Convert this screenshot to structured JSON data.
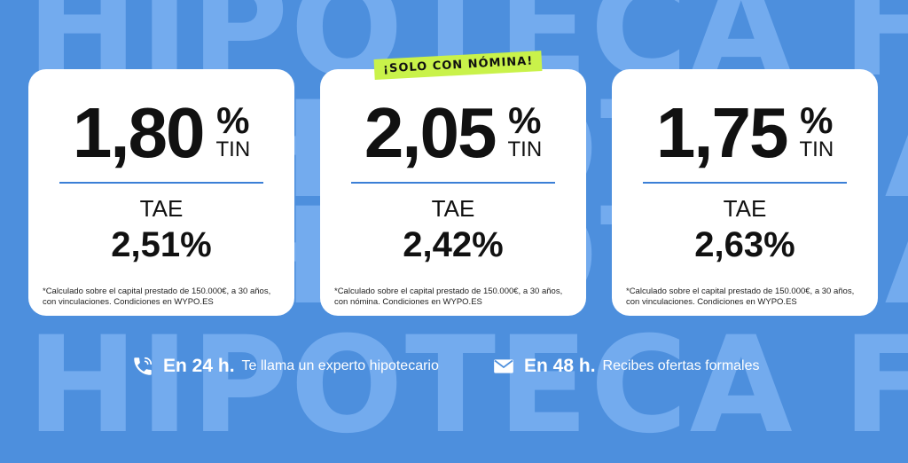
{
  "background": {
    "watermark_text": "HIPOTECA FIJA",
    "colors": {
      "background": "#4d8fdd",
      "watermark": "#73abee"
    }
  },
  "badge": {
    "label": "¡SOLO CON NÓMINA!",
    "color": "#c9f24a"
  },
  "cards": [
    {
      "tin_value": "1,80",
      "tin_pct": "%",
      "tin_label": "TIN",
      "tae_label": "TAE",
      "tae_value": "2,51%",
      "note": "*Calculado sobre el capital prestado de 150.000€, a 30 años, con vinculaciones.  Condiciones en WYPO.ES"
    },
    {
      "tin_value": "2,05",
      "tin_pct": "%",
      "tin_label": "TIN",
      "tae_label": "TAE",
      "tae_value": "2,42%",
      "note": "*Calculado sobre el capital prestado de 150.000€, a 30 años, con nómina.  Condiciones en WYPO.ES"
    },
    {
      "tin_value": "1,75",
      "tin_pct": "%",
      "tin_label": "TIN",
      "tae_label": "TAE",
      "tae_value": "2,63%",
      "note": "*Calculado sobre el capital prestado de 150.000€, a 30 años, con vinculaciones.  Condiciones en WYPO.ES"
    }
  ],
  "footer": {
    "items": [
      {
        "icon": "phone-icon",
        "strong": "En 24 h.",
        "text": "Te llama un experto hipotecario"
      },
      {
        "icon": "mail-icon",
        "strong": "En 48 h.",
        "text": "Recibes ofertas formales"
      }
    ]
  }
}
